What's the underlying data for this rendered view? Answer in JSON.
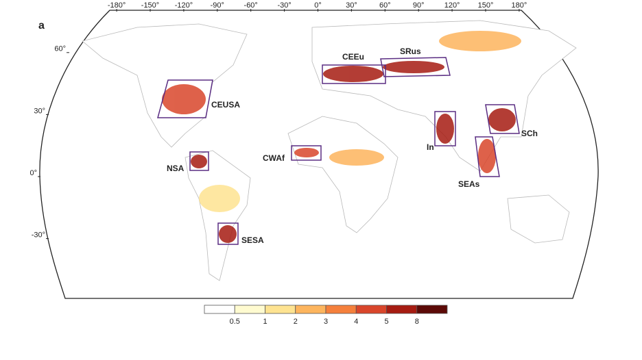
{
  "panel_label": "a",
  "longitude_labels": [
    {
      "value": -180,
      "label": "-180°"
    },
    {
      "value": -150,
      "label": "-150°"
    },
    {
      "value": -120,
      "label": "-120°"
    },
    {
      "value": -90,
      "label": "-90°"
    },
    {
      "value": -60,
      "label": "-60°"
    },
    {
      "value": -30,
      "label": "-30°"
    },
    {
      "value": 0,
      "label": "0°"
    },
    {
      "value": 30,
      "label": "30°"
    },
    {
      "value": 60,
      "label": "60°"
    },
    {
      "value": 90,
      "label": "90°"
    },
    {
      "value": 120,
      "label": "120°"
    },
    {
      "value": 150,
      "label": "150°"
    },
    {
      "value": 180,
      "label": "180°"
    }
  ],
  "latitude_labels": [
    {
      "value": 60,
      "label": "60°"
    },
    {
      "value": 30,
      "label": "30°"
    },
    {
      "value": 0,
      "label": "0°"
    },
    {
      "value": -30,
      "label": "-30°"
    }
  ],
  "regions": [
    "CEUSA",
    "NSA",
    "SESA",
    "CWAf",
    "CEEu",
    "SRus",
    "In",
    "SEAs",
    "SCh"
  ],
  "colorbar": {
    "colors": [
      "#ffffff",
      "#fffbd0",
      "#fee391",
      "#fdb55e",
      "#f5803c",
      "#d9462b",
      "#a61c12",
      "#5c0a07"
    ],
    "ticks": [
      0.5,
      1,
      2,
      3,
      4,
      5,
      8
    ]
  }
}
